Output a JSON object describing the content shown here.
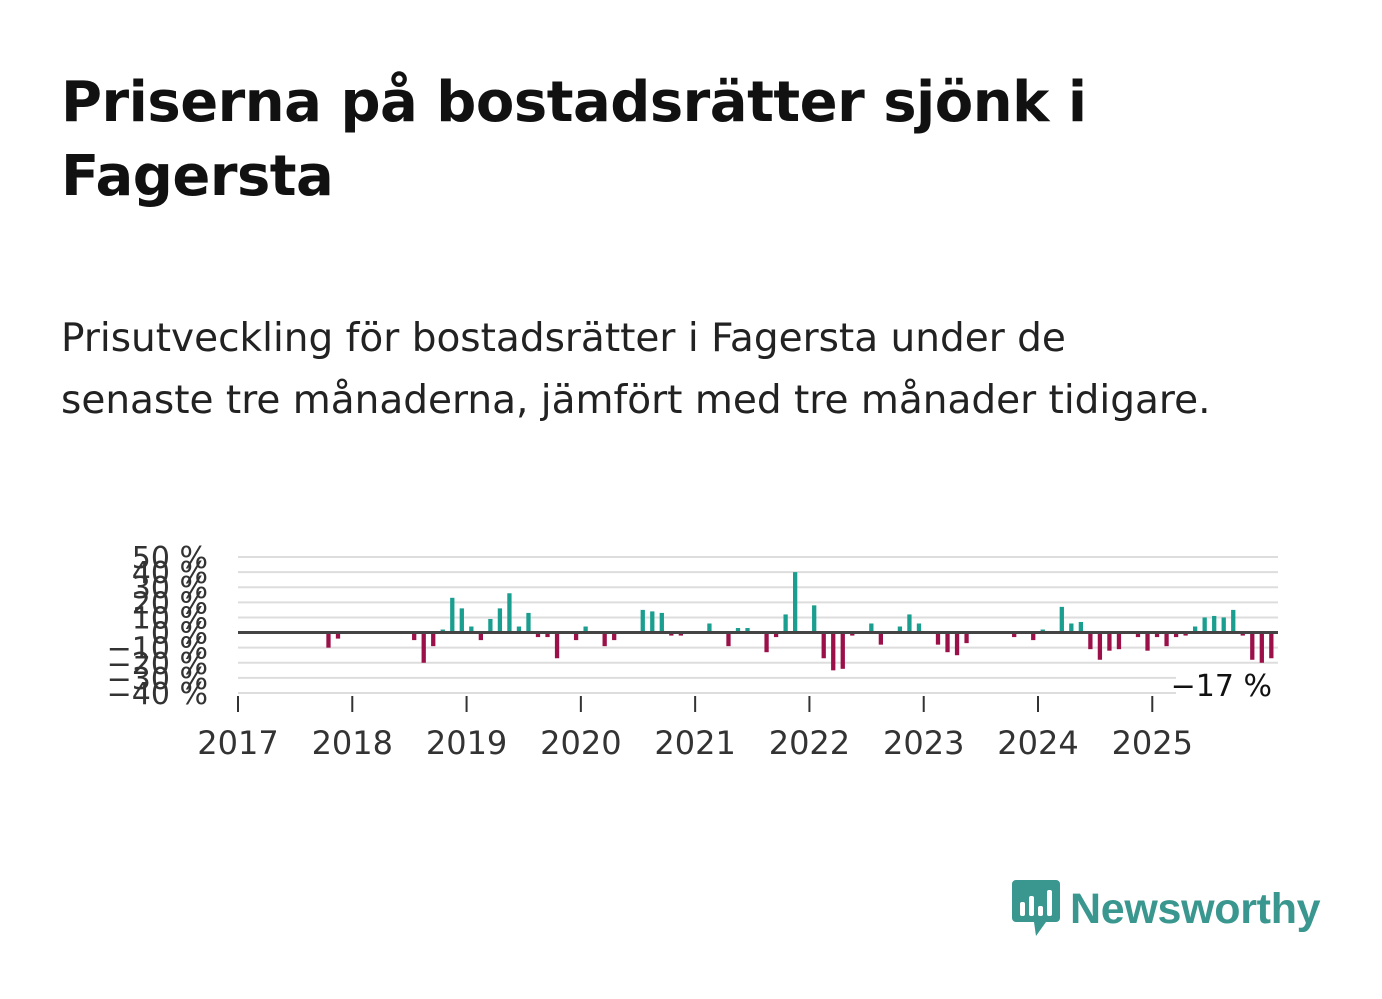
{
  "title": "Priserna på bostadsrätter sjönk i Fagersta",
  "subtitle": "Prisutveckling för bostadsrätter i Fagersta under de senaste tre månaderna, jämfört med tre månader tidigare.",
  "brand": {
    "name": "Newsworthy",
    "color": "#3a978f"
  },
  "colors": {
    "positive": "#1a9e8f",
    "negative": "#9b1048",
    "zero_line": "#444444",
    "grid": "#dddddd"
  },
  "chart_data": {
    "type": "bar",
    "ylim": [
      -40,
      50
    ],
    "y_ticks": [
      -40,
      -30,
      -20,
      -10,
      0,
      10,
      20,
      30,
      40,
      50
    ],
    "y_tick_labels": [
      "−40 %",
      "−30 %",
      "−20 %",
      "−10 %",
      "0 %",
      "10 %",
      "20 %",
      "30 %",
      "40 %",
      "50 %"
    ],
    "x_ticks": [
      "2017",
      "2018",
      "2019",
      "2020",
      "2021",
      "2022",
      "2023",
      "2024",
      "2025"
    ],
    "start": "2017-01",
    "last_label": "−17 %",
    "values": [
      0,
      0,
      0,
      0,
      0,
      0,
      0,
      0,
      0,
      -10,
      -4,
      1,
      0,
      0,
      0,
      0,
      0,
      0,
      -5,
      -20,
      -9,
      2,
      23,
      16,
      4,
      -5,
      9,
      16,
      26,
      4,
      13,
      -3,
      -3,
      -17,
      0,
      -5,
      4,
      0,
      -9,
      -5,
      0,
      0,
      15,
      14,
      13,
      -2,
      -2,
      0,
      0,
      6,
      0,
      -9,
      3,
      3,
      0,
      -13,
      -3,
      12,
      40,
      0,
      18,
      -17,
      -25,
      -24,
      -2,
      0,
      6,
      -8,
      0,
      4,
      12,
      6,
      0,
      -8,
      -13,
      -15,
      -7,
      0,
      0,
      0,
      0,
      -3,
      0,
      -5,
      2,
      0,
      17,
      6,
      7,
      -11,
      -18,
      -12,
      -11,
      0,
      -3,
      -12,
      -3,
      -9,
      -3,
      -2,
      4,
      10,
      11,
      10,
      15,
      -2,
      -18,
      -20,
      -17
    ]
  }
}
